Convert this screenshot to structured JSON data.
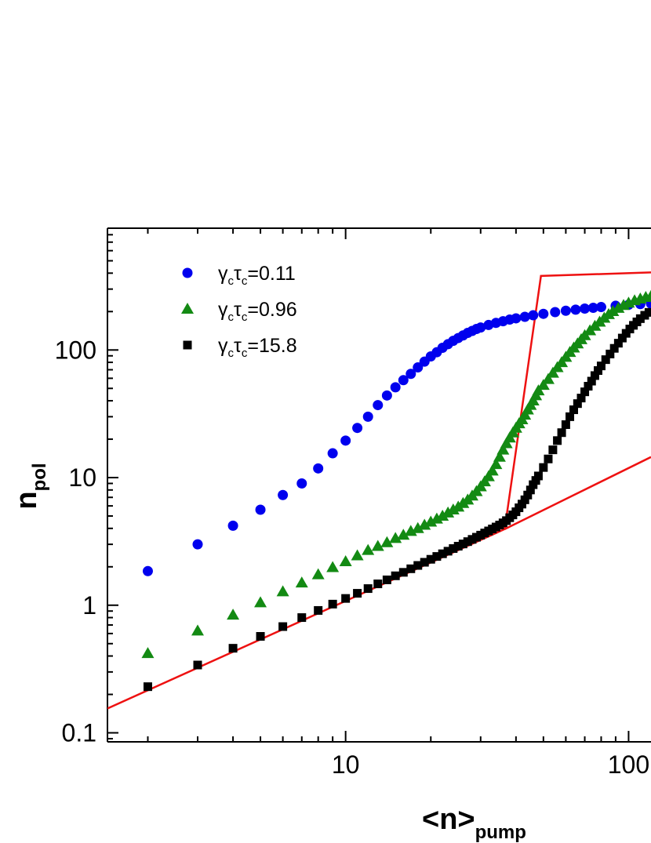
{
  "chart_data": {
    "type": "scatter",
    "xscale": "log",
    "yscale": "log",
    "xlim": [
      1.44,
      120
    ],
    "ylim": [
      0.085,
      900
    ],
    "xlabel": {
      "main": "<n>",
      "sub": "pump"
    },
    "ylabel": {
      "main": "n",
      "sub": "pol"
    },
    "x_ticks": [
      10,
      100
    ],
    "x_tick_labels": [
      "10",
      "100"
    ],
    "y_ticks": [
      0.1,
      1,
      10,
      100
    ],
    "y_tick_labels": [
      "0.1",
      "1",
      "10",
      "100"
    ],
    "legend": {
      "position": "top-left"
    },
    "series": [
      {
        "label": {
          "sym": "γ",
          "sub1": "c",
          "sym2": "τ",
          "sub2": "c",
          "value": "=0.11"
        },
        "marker": "circle",
        "color": "#0000ee",
        "points": [
          [
            2,
            1.85
          ],
          [
            3,
            3.0
          ],
          [
            4,
            4.2
          ],
          [
            5,
            5.6
          ],
          [
            6,
            7.3
          ],
          [
            7,
            9.0
          ],
          [
            8,
            11.8
          ],
          [
            9,
            15.5
          ],
          [
            10,
            19.5
          ],
          [
            11,
            24.5
          ],
          [
            12,
            30
          ],
          [
            13,
            37
          ],
          [
            14,
            44
          ],
          [
            15,
            51
          ],
          [
            16,
            58
          ],
          [
            17,
            65
          ],
          [
            18,
            73
          ],
          [
            19,
            81
          ],
          [
            20,
            89
          ],
          [
            21,
            96
          ],
          [
            22,
            104
          ],
          [
            23,
            111
          ],
          [
            24,
            118
          ],
          [
            25,
            124
          ],
          [
            26,
            130
          ],
          [
            27,
            136
          ],
          [
            28,
            141
          ],
          [
            29,
            146
          ],
          [
            30,
            150
          ],
          [
            32,
            157
          ],
          [
            34,
            163
          ],
          [
            36,
            168
          ],
          [
            38,
            173
          ],
          [
            40,
            177
          ],
          [
            43,
            182
          ],
          [
            46,
            187
          ],
          [
            50,
            192
          ],
          [
            55,
            198
          ],
          [
            60,
            203
          ],
          [
            65,
            207
          ],
          [
            70,
            211
          ],
          [
            75,
            214
          ],
          [
            80,
            217
          ],
          [
            90,
            222
          ],
          [
            100,
            226
          ],
          [
            110,
            229
          ],
          [
            120,
            231
          ]
        ]
      },
      {
        "label": {
          "sym": "γ",
          "sub1": "c",
          "sym2": "τ",
          "sub2": "c",
          "value": "=0.96"
        },
        "marker": "triangle",
        "color": "#138a13",
        "points": [
          [
            2,
            0.42
          ],
          [
            3,
            0.63
          ],
          [
            4,
            0.84
          ],
          [
            5,
            1.05
          ],
          [
            6,
            1.28
          ],
          [
            7,
            1.5
          ],
          [
            8,
            1.74
          ],
          [
            9,
            1.98
          ],
          [
            10,
            2.2
          ],
          [
            11,
            2.45
          ],
          [
            12,
            2.7
          ],
          [
            13,
            2.9
          ],
          [
            14,
            3.1
          ],
          [
            15,
            3.35
          ],
          [
            16,
            3.55
          ],
          [
            17,
            3.8
          ],
          [
            18,
            4.0
          ],
          [
            19,
            4.25
          ],
          [
            20,
            4.5
          ],
          [
            21,
            4.75
          ],
          [
            22,
            5.0
          ],
          [
            23,
            5.3
          ],
          [
            24,
            5.6
          ],
          [
            25,
            5.9
          ],
          [
            26,
            6.3
          ],
          [
            27,
            6.7
          ],
          [
            28,
            7.2
          ],
          [
            29,
            7.8
          ],
          [
            30,
            8.5
          ],
          [
            31,
            9.3
          ],
          [
            32,
            10.2
          ],
          [
            33,
            11.3
          ],
          [
            34,
            12.7
          ],
          [
            35,
            14.5
          ],
          [
            36,
            16.5
          ],
          [
            37,
            18.5
          ],
          [
            38,
            20.5
          ],
          [
            39,
            22.5
          ],
          [
            40,
            24.5
          ],
          [
            41,
            26.5
          ],
          [
            42,
            28.5
          ],
          [
            43,
            31
          ],
          [
            44,
            34
          ],
          [
            45,
            37
          ],
          [
            46,
            40
          ],
          [
            47,
            44
          ],
          [
            48,
            48
          ],
          [
            50,
            53
          ],
          [
            52,
            59
          ],
          [
            54,
            66
          ],
          [
            56,
            73
          ],
          [
            58,
            80
          ],
          [
            60,
            88
          ],
          [
            62,
            96
          ],
          [
            64,
            104
          ],
          [
            66,
            112
          ],
          [
            68,
            121
          ],
          [
            70,
            130
          ],
          [
            73,
            142
          ],
          [
            76,
            154
          ],
          [
            79,
            166
          ],
          [
            82,
            178
          ],
          [
            85,
            190
          ],
          [
            88,
            201
          ],
          [
            92,
            213
          ],
          [
            96,
            224
          ],
          [
            100,
            234
          ],
          [
            105,
            244
          ],
          [
            110,
            252
          ],
          [
            115,
            259
          ],
          [
            120,
            264
          ]
        ]
      },
      {
        "label": {
          "sym": "γ",
          "sub1": "c",
          "sym2": "τ",
          "sub2": "c",
          "value": "=15.8"
        },
        "marker": "square",
        "color": "#000000",
        "points": [
          [
            2,
            0.23
          ],
          [
            3,
            0.34
          ],
          [
            4,
            0.46
          ],
          [
            5,
            0.57
          ],
          [
            6,
            0.68
          ],
          [
            7,
            0.8
          ],
          [
            8,
            0.91
          ],
          [
            9,
            1.02
          ],
          [
            10,
            1.13
          ],
          [
            11,
            1.24
          ],
          [
            12,
            1.35
          ],
          [
            13,
            1.47
          ],
          [
            14,
            1.58
          ],
          [
            15,
            1.7
          ],
          [
            16,
            1.81
          ],
          [
            17,
            1.93
          ],
          [
            18,
            2.05
          ],
          [
            19,
            2.17
          ],
          [
            20,
            2.29
          ],
          [
            21,
            2.41
          ],
          [
            22,
            2.53
          ],
          [
            23,
            2.65
          ],
          [
            24,
            2.78
          ],
          [
            25,
            2.9
          ],
          [
            26,
            3.02
          ],
          [
            27,
            3.15
          ],
          [
            28,
            3.28
          ],
          [
            29,
            3.41
          ],
          [
            30,
            3.54
          ],
          [
            31,
            3.68
          ],
          [
            32,
            3.82
          ],
          [
            33,
            3.96
          ],
          [
            34,
            4.1
          ],
          [
            35,
            4.25
          ],
          [
            36,
            4.42
          ],
          [
            37,
            4.6
          ],
          [
            38,
            4.85
          ],
          [
            39,
            5.1
          ],
          [
            40,
            5.4
          ],
          [
            41,
            5.8
          ],
          [
            42,
            6.2
          ],
          [
            43,
            6.7
          ],
          [
            44,
            7.3
          ],
          [
            45,
            8.0
          ],
          [
            46,
            8.8
          ],
          [
            47,
            9.5
          ],
          [
            48,
            10.3
          ],
          [
            50,
            12.0
          ],
          [
            52,
            14.0
          ],
          [
            54,
            16.5
          ],
          [
            56,
            19.5
          ],
          [
            58,
            22.5
          ],
          [
            60,
            26
          ],
          [
            62,
            30
          ],
          [
            64,
            34
          ],
          [
            66,
            38
          ],
          [
            68,
            42
          ],
          [
            70,
            47
          ],
          [
            72,
            52
          ],
          [
            74,
            57
          ],
          [
            76,
            63
          ],
          [
            78,
            69
          ],
          [
            80,
            75
          ],
          [
            83,
            84
          ],
          [
            86,
            93
          ],
          [
            89,
            103
          ],
          [
            92,
            113
          ],
          [
            95,
            124
          ],
          [
            98,
            135
          ],
          [
            101,
            146
          ],
          [
            104,
            156
          ],
          [
            107,
            166
          ],
          [
            110,
            176
          ],
          [
            114,
            187
          ],
          [
            118,
            197
          ]
        ]
      }
    ],
    "fit_lines": [
      {
        "color": "#ee1111",
        "points": [
          [
            1.44,
            0.155
          ],
          [
            36.5,
            3.95
          ],
          [
            49,
            380
          ],
          [
            120,
            405
          ]
        ]
      },
      {
        "color": "#ee1111",
        "points": [
          [
            36.5,
            3.95
          ],
          [
            120,
            14.5
          ]
        ]
      }
    ]
  }
}
